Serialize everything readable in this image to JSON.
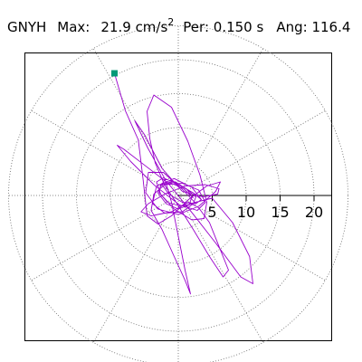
{
  "header": {
    "station": "GNYH",
    "max_label": "Max:",
    "max_value": "21.9",
    "max_unit": "cm/s",
    "max_exp": "2",
    "per_label": "Per:",
    "per_value": "0.150 s",
    "ang_label": "Ang:",
    "ang_value": "116.4"
  },
  "colors": {
    "trace": "#9900cc",
    "marker": "#009977",
    "grid": "#666666",
    "axis": "#000000"
  },
  "chart_data": {
    "type": "polar-particle-motion",
    "radial_ticks": [
      5,
      10,
      15,
      20
    ],
    "radial_tick_labels": [
      "5",
      "10",
      "15",
      "20"
    ],
    "rmax": 25,
    "grid": true,
    "angular_grid_step_deg": 30,
    "trace_points": [
      [
        -9.4,
        18.0
      ],
      [
        -7.8,
        12.5
      ],
      [
        -5.9,
        8.2
      ],
      [
        -5.2,
        2.5
      ],
      [
        -4.6,
        -3.0
      ],
      [
        -3.0,
        -4.2
      ],
      [
        -1.0,
        -3.0
      ],
      [
        1.5,
        -0.6
      ],
      [
        4.2,
        1.4
      ],
      [
        6.2,
        2.0
      ],
      [
        5.5,
        0.6
      ],
      [
        3.0,
        -1.6
      ],
      [
        0.0,
        -2.8
      ],
      [
        -3.0,
        -2.0
      ],
      [
        -4.8,
        0.4
      ],
      [
        -4.4,
        3.4
      ],
      [
        -2.2,
        3.4
      ],
      [
        0.5,
        1.0
      ],
      [
        2.6,
        -1.2
      ],
      [
        3.4,
        -0.6
      ],
      [
        2.0,
        1.2
      ],
      [
        -0.6,
        2.5
      ],
      [
        -3.2,
        1.4
      ],
      [
        -3.8,
        -1.2
      ],
      [
        -2.0,
        -2.6
      ],
      [
        0.6,
        -2.4
      ],
      [
        2.5,
        -1.0
      ],
      [
        5.0,
        -0.4
      ],
      [
        8.0,
        -4.0
      ],
      [
        10.5,
        -9.0
      ],
      [
        11.0,
        -13.0
      ],
      [
        9.2,
        -12.0
      ],
      [
        5.5,
        -7.0
      ],
      [
        2.0,
        -2.5
      ],
      [
        -1.5,
        1.8
      ],
      [
        -5.0,
        4.5
      ],
      [
        -8.0,
        6.8
      ],
      [
        -9.0,
        7.4
      ],
      [
        -7.0,
        5.0
      ],
      [
        -3.5,
        1.5
      ],
      [
        0.2,
        -1.4
      ],
      [
        2.8,
        -2.2
      ],
      [
        4.0,
        -1.0
      ],
      [
        3.0,
        0.8
      ],
      [
        0.6,
        1.8
      ],
      [
        -2.0,
        1.6
      ],
      [
        -3.6,
        0.2
      ],
      [
        -4.0,
        -2.2
      ],
      [
        -2.4,
        -5.0
      ],
      [
        -0.6,
        -9.0
      ],
      [
        1.0,
        -12.5
      ],
      [
        1.8,
        -14.5
      ],
      [
        1.0,
        -11.0
      ],
      [
        0.0,
        -6.0
      ],
      [
        -1.0,
        -1.0
      ],
      [
        -2.0,
        2.5
      ],
      [
        -4.5,
        7.0
      ],
      [
        -6.4,
        11.0
      ],
      [
        -5.0,
        9.0
      ],
      [
        -2.4,
        4.0
      ],
      [
        0.6,
        0.6
      ],
      [
        3.6,
        -0.2
      ],
      [
        5.8,
        0.2
      ],
      [
        6.0,
        1.0
      ],
      [
        4.0,
        1.6
      ],
      [
        1.0,
        1.4
      ],
      [
        -2.0,
        0.2
      ],
      [
        -4.4,
        -1.2
      ],
      [
        -5.5,
        -2.4
      ],
      [
        -4.0,
        -3.0
      ],
      [
        -1.0,
        -2.4
      ],
      [
        1.5,
        -1.0
      ],
      [
        3.0,
        -1.8
      ],
      [
        4.6,
        -4.0
      ],
      [
        6.0,
        -7.5
      ],
      [
        7.4,
        -11.0
      ],
      [
        6.6,
        -12.0
      ],
      [
        4.6,
        -9.0
      ],
      [
        2.2,
        -5.0
      ],
      [
        0.0,
        -1.5
      ],
      [
        -2.0,
        1.5
      ],
      [
        -3.4,
        4.8
      ],
      [
        -4.2,
        8.4
      ],
      [
        -4.6,
        12.4
      ],
      [
        -3.6,
        14.8
      ],
      [
        -1.0,
        13.0
      ],
      [
        1.4,
        8.0
      ],
      [
        3.2,
        3.0
      ],
      [
        4.2,
        -1.0
      ],
      [
        3.8,
        -3.4
      ],
      [
        2.0,
        -3.6
      ],
      [
        -0.6,
        -2.0
      ],
      [
        -2.6,
        0.2
      ],
      [
        -3.2,
        2.0
      ],
      [
        -2.2,
        2.6
      ],
      [
        0.0,
        1.6
      ],
      [
        2.2,
        0.4
      ],
      [
        3.4,
        -0.6
      ],
      [
        2.6,
        -1.2
      ],
      [
        0.6,
        -1.0
      ],
      [
        -1.4,
        0.2
      ],
      [
        -2.4,
        1.6
      ],
      [
        -2.0,
        2.4
      ],
      [
        -0.4,
        2.0
      ],
      [
        1.4,
        0.8
      ],
      [
        2.6,
        -0.2
      ],
      [
        2.2,
        -1.2
      ],
      [
        0.4,
        -1.6
      ],
      [
        -1.6,
        -1.0
      ],
      [
        -2.8,
        0.4
      ],
      [
        -2.6,
        1.6
      ],
      [
        -1.0,
        1.8
      ],
      [
        0.8,
        1.0
      ],
      [
        2.0,
        -0.2
      ],
      [
        1.6,
        -1.4
      ],
      [
        0.0,
        -2.0
      ],
      [
        -1.8,
        -1.2
      ],
      [
        -3.0,
        0.4
      ],
      [
        -2.4,
        1.8
      ],
      [
        -0.6,
        2.0
      ],
      [
        1.2,
        1.0
      ],
      [
        2.2,
        -0.4
      ]
    ]
  }
}
